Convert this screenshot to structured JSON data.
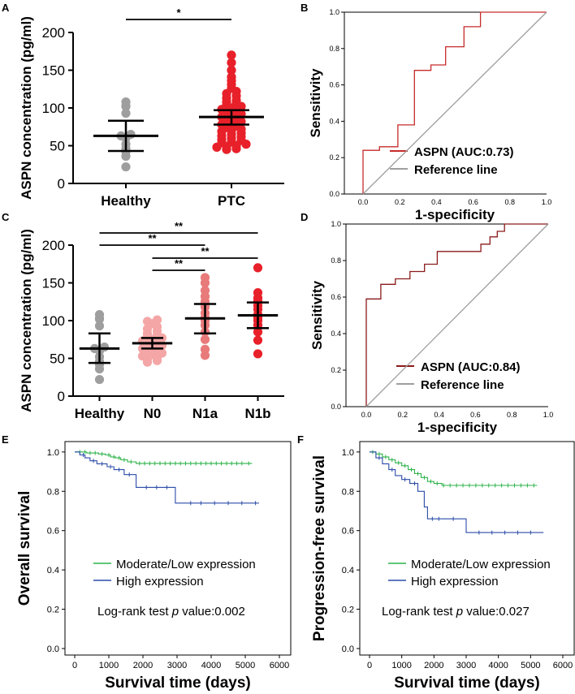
{
  "chart_data": [
    {
      "panel": "A",
      "type": "scatter",
      "ylabel": "ASPN concentration (pg/ml)",
      "categories": [
        "Healthy",
        "PTC"
      ],
      "ylim": [
        0,
        200
      ],
      "yticks": [
        "0",
        "50",
        "100",
        "150",
        "200"
      ],
      "groups": [
        {
          "name": "Healthy",
          "color": "#9e9e9e",
          "mean": 63,
          "ci": [
            43,
            83
          ],
          "values": [
            22,
            36,
            42,
            46,
            52,
            60,
            63,
            65,
            93,
            102,
            103,
            108
          ]
        },
        {
          "name": "PTC",
          "color": "#e8202a",
          "mean": 88,
          "ci": [
            78,
            97
          ],
          "values": [
            45,
            46,
            48,
            49,
            50,
            52,
            54,
            55,
            57,
            58,
            60,
            62,
            63,
            65,
            67,
            69,
            70,
            72,
            74,
            76,
            78,
            80,
            82,
            84,
            86,
            88,
            90,
            92,
            94,
            96,
            98,
            100,
            102,
            104,
            106,
            108,
            110,
            113,
            116,
            119,
            122,
            126,
            131,
            136,
            141,
            150,
            160,
            170
          ]
        }
      ],
      "comparisons": [
        {
          "from": "Healthy",
          "to": "PTC",
          "label": "*"
        }
      ]
    },
    {
      "panel": "B",
      "type": "line",
      "xlabel": "1-specificity",
      "ylabel": "Sensitivity",
      "xlim": [
        0,
        1
      ],
      "ylim": [
        0,
        1
      ],
      "ticks": [
        "0.0",
        "0.2",
        "0.4",
        "0.6",
        "0.8",
        "1.0"
      ],
      "series": [
        {
          "name": "ASPN (AUC:0.73)",
          "color": "#c62b2b",
          "points": [
            [
              0,
              0
            ],
            [
              0,
              0.24
            ],
            [
              0.09,
              0.24
            ],
            [
              0.09,
              0.26
            ],
            [
              0.19,
              0.26
            ],
            [
              0.19,
              0.38
            ],
            [
              0.28,
              0.38
            ],
            [
              0.28,
              0.68
            ],
            [
              0.37,
              0.68
            ],
            [
              0.37,
              0.71
            ],
            [
              0.45,
              0.71
            ],
            [
              0.45,
              0.81
            ],
            [
              0.55,
              0.81
            ],
            [
              0.55,
              0.92
            ],
            [
              0.64,
              0.92
            ],
            [
              0.64,
              1.0
            ],
            [
              1.0,
              1.0
            ]
          ]
        },
        {
          "name": "Reference line",
          "color": "#9e9e9e",
          "points": [
            [
              0,
              0
            ],
            [
              1,
              1
            ]
          ]
        }
      ]
    },
    {
      "panel": "C",
      "type": "scatter",
      "ylabel": "ASPN concentration (pg/ml)",
      "categories": [
        "Healthy",
        "N0",
        "N1a",
        "N1b"
      ],
      "ylim": [
        0,
        200
      ],
      "yticks": [
        "0",
        "50",
        "100",
        "150",
        "200"
      ],
      "groups": [
        {
          "name": "Healthy",
          "color": "#9e9e9e",
          "mean": 63,
          "ci": [
            44,
            83
          ],
          "values": [
            22,
            36,
            42,
            46,
            52,
            60,
            63,
            65,
            93,
            102,
            103,
            108
          ]
        },
        {
          "name": "N0",
          "color": "#f4a6a6",
          "mean": 70,
          "ci": [
            63,
            77
          ],
          "values": [
            45,
            47,
            49,
            51,
            53,
            55,
            57,
            59,
            61,
            63,
            65,
            67,
            69,
            71,
            73,
            75,
            77,
            79,
            81,
            83,
            86,
            89,
            92,
            96,
            99,
            101
          ]
        },
        {
          "name": "N1a",
          "color": "#e97a7a",
          "mean": 103,
          "ci": [
            83,
            122
          ],
          "values": [
            54,
            62,
            75,
            85,
            94,
            100,
            104,
            110,
            118,
            125,
            132,
            140,
            150,
            157
          ]
        },
        {
          "name": "N1b",
          "color": "#e8202a",
          "mean": 107,
          "ci": [
            90,
            124
          ],
          "values": [
            56,
            74,
            85,
            94,
            100,
            104,
            108,
            115,
            120,
            126,
            130,
            137,
            170
          ]
        }
      ],
      "comparisons": [
        {
          "from": "Healthy",
          "to": "N1b",
          "label": "**"
        },
        {
          "from": "Healthy",
          "to": "N1a",
          "label": "**"
        },
        {
          "from": "N0",
          "to": "N1b",
          "label": "**"
        },
        {
          "from": "N0",
          "to": "N1a",
          "label": "**"
        }
      ]
    },
    {
      "panel": "D",
      "type": "line",
      "xlabel": "1-specificity",
      "ylabel": "Sensitivity",
      "xlim": [
        0,
        1
      ],
      "ylim": [
        0,
        1
      ],
      "ticks": [
        "0.0",
        "0.2",
        "0.4",
        "0.6",
        "0.8",
        "1.0"
      ],
      "series": [
        {
          "name": "ASPN (AUC:0.84)",
          "color": "#8b1a1a",
          "points": [
            [
              0,
              0
            ],
            [
              0,
              0.59
            ],
            [
              0.08,
              0.59
            ],
            [
              0.08,
              0.67
            ],
            [
              0.16,
              0.67
            ],
            [
              0.16,
              0.7
            ],
            [
              0.24,
              0.7
            ],
            [
              0.24,
              0.74
            ],
            [
              0.32,
              0.74
            ],
            [
              0.32,
              0.78
            ],
            [
              0.39,
              0.78
            ],
            [
              0.39,
              0.85
            ],
            [
              0.63,
              0.85
            ],
            [
              0.63,
              0.89
            ],
            [
              0.68,
              0.89
            ],
            [
              0.68,
              0.93
            ],
            [
              0.72,
              0.93
            ],
            [
              0.72,
              0.96
            ],
            [
              0.76,
              0.96
            ],
            [
              0.76,
              1.0
            ],
            [
              1.0,
              1.0
            ]
          ]
        },
        {
          "name": "Reference line",
          "color": "#9e9e9e",
          "points": [
            [
              0,
              0
            ],
            [
              1,
              1
            ]
          ]
        }
      ]
    },
    {
      "panel": "E",
      "type": "line",
      "subtype": "kaplan-meier",
      "xlabel": "Survival time (days)",
      "ylabel": "Overall survival",
      "xlim": [
        0,
        6000
      ],
      "ylim": [
        0,
        1.02
      ],
      "xticks": [
        "0",
        "1000",
        "2000",
        "3000",
        "4000",
        "5000",
        "6000"
      ],
      "yticks": [
        "0.0",
        "0.2",
        "0.4",
        "0.6",
        "0.8",
        "1.0"
      ],
      "annotation_prefix": "Log-rank test ",
      "annotation_italic": "p",
      "annotation_suffix": " value:0.002",
      "series": [
        {
          "name": "Moderate/Low expression",
          "color": "#2db34a",
          "steps": [
            [
              0,
              1.0
            ],
            [
              350,
              0.995
            ],
            [
              700,
              0.99
            ],
            [
              900,
              0.985
            ],
            [
              1050,
              0.975
            ],
            [
              1200,
              0.97
            ],
            [
              1350,
              0.96
            ],
            [
              1550,
              0.95
            ],
            [
              1800,
              0.942
            ],
            [
              5200,
              0.942
            ]
          ],
          "censor": [
            150,
            300,
            450,
            600,
            800,
            1000,
            1150,
            1300,
            1450,
            1650,
            1900,
            2050,
            2200,
            2350,
            2500,
            2650,
            2800,
            2950,
            3100,
            3250,
            3400,
            3550,
            3700,
            3850,
            4000,
            4150,
            4300,
            4450,
            4600,
            4750,
            4900,
            5100
          ]
        },
        {
          "name": "High expression",
          "color": "#2b4ba8",
          "steps": [
            [
              0,
              1.0
            ],
            [
              150,
              0.985
            ],
            [
              300,
              0.97
            ],
            [
              450,
              0.955
            ],
            [
              650,
              0.94
            ],
            [
              950,
              0.925
            ],
            [
              1150,
              0.91
            ],
            [
              1450,
              0.885
            ],
            [
              1800,
              0.82
            ],
            [
              2950,
              0.74
            ],
            [
              5400,
              0.74
            ]
          ],
          "censor": [
            250,
            550,
            800,
            1050,
            1300,
            1600,
            2100,
            2400,
            2700,
            3400,
            3700,
            4100,
            4500,
            4900,
            5300
          ]
        }
      ]
    },
    {
      "panel": "F",
      "type": "line",
      "subtype": "kaplan-meier",
      "xlabel": "Survival time (days)",
      "ylabel": "Progression-free survival",
      "xlim": [
        0,
        6000
      ],
      "ylim": [
        0,
        1.02
      ],
      "xticks": [
        "0",
        "1000",
        "2000",
        "3000",
        "4000",
        "5000",
        "6000"
      ],
      "yticks": [
        "0.0",
        "0.2",
        "0.4",
        "0.6",
        "0.8",
        "1.0"
      ],
      "annotation_prefix": "Log-rank test ",
      "annotation_italic": "p",
      "annotation_suffix": " value:0.027",
      "series": [
        {
          "name": "Moderate/Low expression",
          "color": "#2db34a",
          "steps": [
            [
              0,
              1.0
            ],
            [
              200,
              0.99
            ],
            [
              400,
              0.975
            ],
            [
              600,
              0.96
            ],
            [
              800,
              0.945
            ],
            [
              1000,
              0.93
            ],
            [
              1200,
              0.91
            ],
            [
              1400,
              0.89
            ],
            [
              1600,
              0.87
            ],
            [
              1800,
              0.85
            ],
            [
              2000,
              0.84
            ],
            [
              2250,
              0.83
            ],
            [
              5200,
              0.83
            ]
          ],
          "censor": [
            100,
            300,
            500,
            700,
            900,
            1100,
            1300,
            1500,
            1700,
            1900,
            2100,
            2300,
            2500,
            2700,
            2900,
            3100,
            3300,
            3500,
            3700,
            3900,
            4100,
            4300,
            4500,
            4700,
            4900,
            5100
          ]
        },
        {
          "name": "High expression",
          "color": "#2b4ba8",
          "steps": [
            [
              0,
              1.0
            ],
            [
              200,
              0.97
            ],
            [
              400,
              0.94
            ],
            [
              600,
              0.91
            ],
            [
              800,
              0.88
            ],
            [
              1000,
              0.86
            ],
            [
              1250,
              0.84
            ],
            [
              1500,
              0.8
            ],
            [
              1700,
              0.72
            ],
            [
              1800,
              0.66
            ],
            [
              2300,
              0.66
            ],
            [
              3000,
              0.59
            ],
            [
              5400,
              0.59
            ]
          ],
          "censor": [
            300,
            700,
            1100,
            1400,
            1950,
            2150,
            2600,
            3400,
            3800,
            4200,
            4600,
            5000
          ]
        }
      ]
    }
  ]
}
